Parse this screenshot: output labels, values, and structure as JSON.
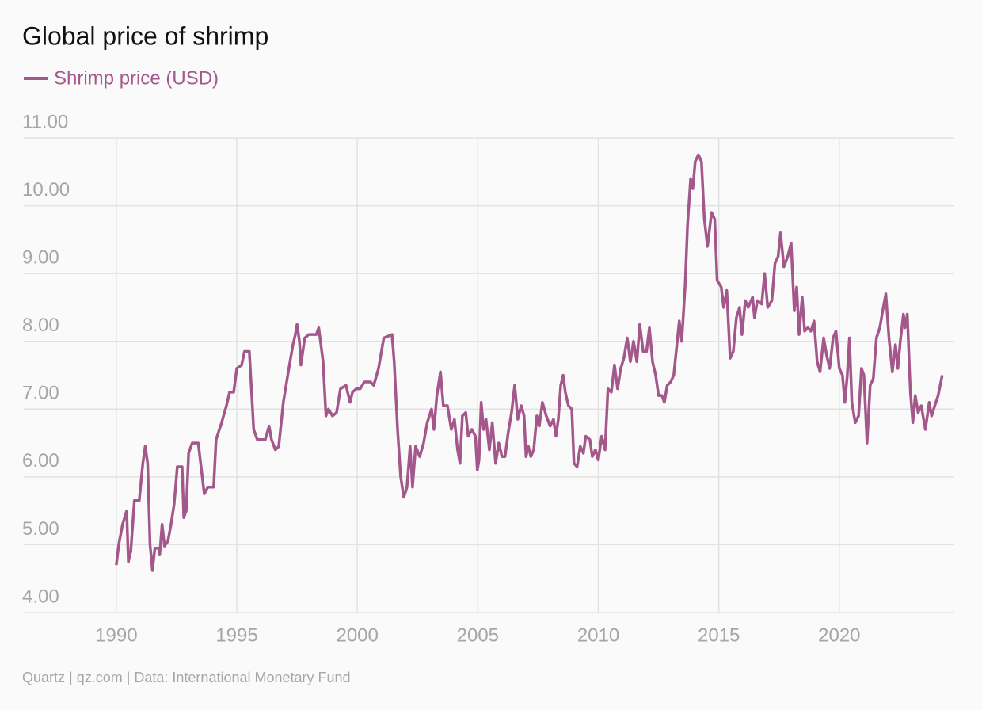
{
  "chart_data": {
    "type": "line",
    "title": "Global price of shrimp",
    "source": "Quartz | qz.com | Data: International Monetary Fund",
    "x": [
      1990.0,
      1990.1,
      1990.26,
      1990.43,
      1990.5,
      1990.6,
      1990.75,
      1990.95,
      1991.1,
      1991.2,
      1991.3,
      1991.4,
      1991.5,
      1991.6,
      1991.75,
      1991.8,
      1991.9,
      1992.0,
      1992.14,
      1992.27,
      1992.4,
      1992.53,
      1992.73,
      1992.8,
      1992.9,
      1993.0,
      1993.15,
      1993.4,
      1993.5,
      1993.65,
      1993.8,
      1994.04,
      1994.14,
      1994.37,
      1994.57,
      1994.7,
      1994.87,
      1995.0,
      1995.2,
      1995.32,
      1995.52,
      1995.7,
      1995.85,
      1996.18,
      1996.34,
      1996.44,
      1996.6,
      1996.74,
      1996.93,
      1997.16,
      1997.33,
      1997.43,
      1997.5,
      1997.6,
      1997.66,
      1997.82,
      1997.99,
      1998.3,
      1998.4,
      1998.58,
      1998.7,
      1998.8,
      1998.97,
      1999.14,
      1999.3,
      1999.53,
      1999.7,
      1999.8,
      1999.96,
      2000.12,
      2000.29,
      2000.55,
      2000.68,
      2000.88,
      2001.1,
      2001.44,
      2001.53,
      2001.67,
      2001.8,
      2001.93,
      2002.06,
      2002.19,
      2002.29,
      2002.42,
      2002.59,
      2002.75,
      2002.9,
      2003.08,
      2003.18,
      2003.3,
      2003.45,
      2003.57,
      2003.74,
      2003.9,
      2004.03,
      2004.16,
      2004.26,
      2004.36,
      2004.5,
      2004.6,
      2004.75,
      2004.9,
      2004.98,
      2005.05,
      2005.14,
      2005.24,
      2005.34,
      2005.48,
      2005.6,
      2005.74,
      2005.87,
      2006.0,
      2006.13,
      2006.26,
      2006.4,
      2006.53,
      2006.66,
      2006.8,
      2006.92,
      2007.0,
      2007.1,
      2007.2,
      2007.32,
      2007.45,
      2007.55,
      2007.68,
      2007.84,
      2008.0,
      2008.14,
      2008.24,
      2008.34,
      2008.44,
      2008.54,
      2008.63,
      2008.76,
      2008.9,
      2008.99,
      2009.12,
      2009.25,
      2009.38,
      2009.48,
      2009.65,
      2009.75,
      2009.88,
      2010.0,
      2010.14,
      2010.28,
      2010.4,
      2010.54,
      2010.67,
      2010.8,
      2010.93,
      2011.06,
      2011.2,
      2011.33,
      2011.46,
      2011.6,
      2011.72,
      2011.86,
      2012.0,
      2012.12,
      2012.25,
      2012.38,
      2012.5,
      2012.64,
      2012.74,
      2012.86,
      2013.0,
      2013.13,
      2013.26,
      2013.36,
      2013.46,
      2013.6,
      2013.7,
      2013.83,
      2013.92,
      2014.02,
      2014.15,
      2014.28,
      2014.4,
      2014.53,
      2014.7,
      2014.83,
      2014.93,
      2015.1,
      2015.2,
      2015.33,
      2015.47,
      2015.6,
      2015.73,
      2015.86,
      2015.96,
      2016.1,
      2016.22,
      2016.4,
      2016.48,
      2016.6,
      2016.78,
      2016.9,
      2017.03,
      2017.2,
      2017.33,
      2017.46,
      2017.56,
      2017.7,
      2017.86,
      2018.0,
      2018.13,
      2018.23,
      2018.33,
      2018.46,
      2018.56,
      2018.69,
      2018.82,
      2018.95,
      2019.08,
      2019.2,
      2019.35,
      2019.47,
      2019.6,
      2019.74,
      2019.86,
      2020.0,
      2020.13,
      2020.23,
      2020.33,
      2020.42,
      2020.52,
      2020.66,
      2020.8,
      2020.92,
      2021.02,
      2021.15,
      2021.28,
      2021.41,
      2021.54,
      2021.68,
      2021.8,
      2021.93,
      2022.06,
      2022.2,
      2022.33,
      2022.43,
      2022.53,
      2022.66,
      2022.72,
      2022.82,
      2022.95,
      2023.05,
      2023.15,
      2023.27,
      2023.4,
      2023.57,
      2023.73,
      2023.83,
      2023.96,
      2024.1,
      2024.27
    ],
    "series": [
      {
        "name": "Shrimp price (USD)",
        "color": "#a3578a",
        "values": [
          4.7,
          5.0,
          5.3,
          5.5,
          4.75,
          4.9,
          5.65,
          5.65,
          6.2,
          6.45,
          6.2,
          5.0,
          4.62,
          4.95,
          4.95,
          4.85,
          5.3,
          4.98,
          5.05,
          5.3,
          5.6,
          6.15,
          6.15,
          5.4,
          5.5,
          6.35,
          6.5,
          6.5,
          6.2,
          5.75,
          5.85,
          5.85,
          6.55,
          6.8,
          7.05,
          7.25,
          7.25,
          7.6,
          7.65,
          7.85,
          7.85,
          6.7,
          6.55,
          6.55,
          6.75,
          6.55,
          6.4,
          6.45,
          7.1,
          7.6,
          7.95,
          8.1,
          8.25,
          8.0,
          7.65,
          8.05,
          8.1,
          8.1,
          8.2,
          7.7,
          6.9,
          7.0,
          6.9,
          6.95,
          7.3,
          7.35,
          7.1,
          7.25,
          7.3,
          7.3,
          7.4,
          7.4,
          7.35,
          7.6,
          8.05,
          8.1,
          7.7,
          6.7,
          6.0,
          5.7,
          5.85,
          6.45,
          5.85,
          6.45,
          6.3,
          6.5,
          6.8,
          7.0,
          6.7,
          7.2,
          7.55,
          7.05,
          7.05,
          6.7,
          6.85,
          6.4,
          6.2,
          6.9,
          6.95,
          6.6,
          6.7,
          6.6,
          6.1,
          6.25,
          7.1,
          6.7,
          6.85,
          6.4,
          6.8,
          6.2,
          6.5,
          6.3,
          6.3,
          6.65,
          6.95,
          7.35,
          6.85,
          7.05,
          6.9,
          6.3,
          6.45,
          6.3,
          6.4,
          6.9,
          6.75,
          7.1,
          6.9,
          6.75,
          6.85,
          6.6,
          6.85,
          7.35,
          7.5,
          7.25,
          7.05,
          7.0,
          6.2,
          6.15,
          6.45,
          6.35,
          6.6,
          6.55,
          6.3,
          6.4,
          6.25,
          6.6,
          6.4,
          7.3,
          7.25,
          7.65,
          7.3,
          7.6,
          7.75,
          8.05,
          7.7,
          8.0,
          7.7,
          8.25,
          7.85,
          7.85,
          8.2,
          7.7,
          7.5,
          7.2,
          7.2,
          7.1,
          7.35,
          7.4,
          7.5,
          7.95,
          8.3,
          8.0,
          8.8,
          9.7,
          10.4,
          10.25,
          10.65,
          10.75,
          10.65,
          9.8,
          9.4,
          9.9,
          9.8,
          8.9,
          8.8,
          8.5,
          8.75,
          7.75,
          7.85,
          8.35,
          8.5,
          8.1,
          8.6,
          8.5,
          8.65,
          8.35,
          8.6,
          8.55,
          9.0,
          8.5,
          8.6,
          9.15,
          9.25,
          9.6,
          9.1,
          9.25,
          9.45,
          8.45,
          8.8,
          8.1,
          8.65,
          8.15,
          8.2,
          8.15,
          8.3,
          7.7,
          7.55,
          8.05,
          7.8,
          7.6,
          8.05,
          8.15,
          7.6,
          7.5,
          7.1,
          7.5,
          8.05,
          7.1,
          6.8,
          6.9,
          7.6,
          7.5,
          6.5,
          7.35,
          7.45,
          8.05,
          8.2,
          8.45,
          8.7,
          8.05,
          7.55,
          7.95,
          7.6,
          8.0,
          8.4,
          8.2,
          8.4,
          7.25,
          6.8,
          7.2,
          6.95,
          7.05,
          6.7,
          7.1,
          6.9,
          7.05,
          7.2,
          7.5
        ]
      }
    ],
    "xlim": [
      1986.16,
      2024.77
    ],
    "xticks": [
      1990,
      1995,
      2000,
      2005,
      2010,
      2015,
      2020
    ],
    "ylim": [
      4,
      11
    ],
    "yticks": [
      {
        "value": 4,
        "label": "4.00"
      },
      {
        "value": 5,
        "label": "5.00"
      },
      {
        "value": 6,
        "label": "6.00"
      },
      {
        "value": 7,
        "label": "7.00"
      },
      {
        "value": 8,
        "label": "8.00"
      },
      {
        "value": 9,
        "label": "9.00"
      },
      {
        "value": 10,
        "label": "10.00"
      },
      {
        "value": 11,
        "label": "11.00"
      }
    ],
    "grid": true
  }
}
